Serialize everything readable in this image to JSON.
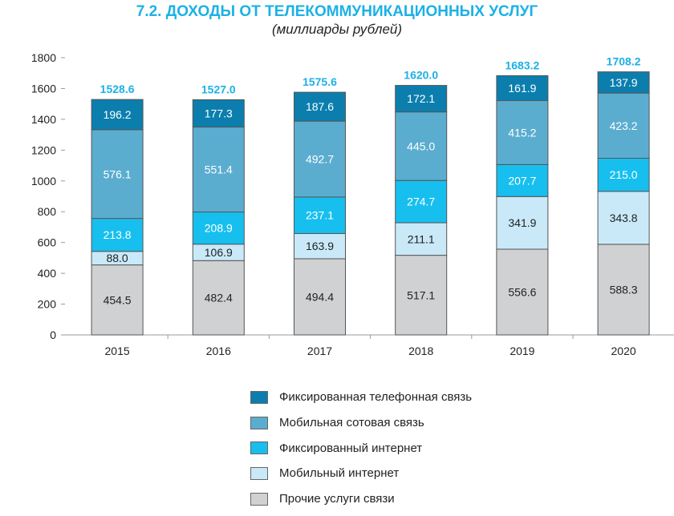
{
  "chart_data": {
    "type": "bar",
    "stacked": true,
    "title": "7.2. ДОХОДЫ ОТ ТЕЛЕКОММУНИКАЦИОННЫХ УСЛУГ",
    "subtitle": "(миллиарды рублей)",
    "categories": [
      "2015",
      "2016",
      "2017",
      "2018",
      "2019",
      "2020"
    ],
    "ylim": [
      0,
      1800
    ],
    "yticks": [
      0,
      200,
      400,
      600,
      800,
      1000,
      1200,
      1400,
      1600,
      1800
    ],
    "grid": false,
    "legend_position": "bottom",
    "totals": [
      "1528.6",
      "1527.0",
      "1575.6",
      "1620.0",
      "1683.2",
      "1708.2"
    ],
    "series": [
      {
        "name": "Прочие услуги связи",
        "color": "#d0d1d3",
        "label_color": "#222222",
        "values": [
          454.5,
          482.4,
          494.4,
          517.1,
          556.6,
          588.3
        ]
      },
      {
        "name": "Мобильный интернет",
        "color": "#c9e9f8",
        "label_color": "#222222",
        "values": [
          88.0,
          106.9,
          163.9,
          211.1,
          341.9,
          343.8
        ]
      },
      {
        "name": "Фиксированный интернет",
        "color": "#17bfef",
        "label_color": "#ffffff",
        "values": [
          213.8,
          208.9,
          237.1,
          274.7,
          207.7,
          215.0
        ]
      },
      {
        "name": "Мобильная сотовая связь",
        "color": "#5badd0",
        "label_color": "#ffffff",
        "values": [
          576.1,
          551.4,
          492.7,
          445.0,
          415.2,
          423.2
        ]
      },
      {
        "name": "Фиксированная телефонная связь",
        "color": "#0b7eae",
        "label_color": "#ffffff",
        "values": [
          196.2,
          177.3,
          187.6,
          172.1,
          161.9,
          137.9
        ]
      }
    ],
    "total_color": "#1cb1e6"
  }
}
